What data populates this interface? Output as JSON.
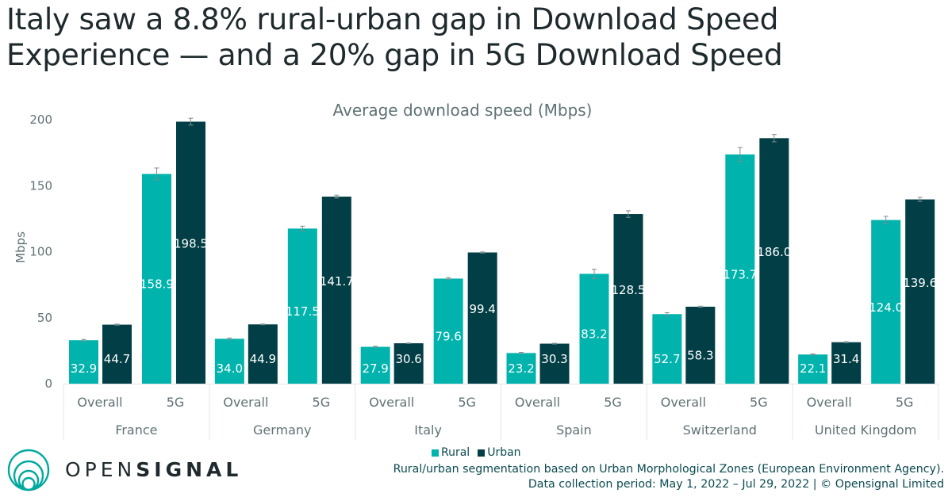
{
  "headline": {
    "line1": "Italy saw a 8.8% rural-urban gap in Download Speed",
    "line2": "Experience — and a 20% gap in 5G Download Speed"
  },
  "colors": {
    "rural": "#00b3ad",
    "urban": "#013e45",
    "axis_text": "#5f7275",
    "grid_line": "#e3e6e6",
    "error_bar": "#7f8c8d"
  },
  "chart_data": {
    "type": "bar",
    "title": "Average download speed (Mbps)",
    "xlabel": "",
    "ylabel": "Mbps",
    "ylim": [
      0,
      200
    ],
    "yticks": [
      0,
      50,
      100,
      150,
      200
    ],
    "grid": false,
    "legend_position": "bottom-center",
    "categories": [
      "France",
      "Germany",
      "Italy",
      "Spain",
      "Switzerland",
      "United Kingdom"
    ],
    "subcategories": [
      "Overall",
      "5G"
    ],
    "series": [
      {
        "name": "Rural",
        "values": {
          "Overall": [
            32.9,
            34.0,
            27.9,
            23.2,
            52.7,
            22.1
          ],
          "5G": [
            158.9,
            117.5,
            79.6,
            83.2,
            173.7,
            124.0
          ]
        },
        "error": {
          "Overall": [
            0.6,
            0.5,
            0.4,
            0.5,
            1.1,
            0.4
          ],
          "5G": [
            4.5,
            1.8,
            0.6,
            3.5,
            5.2,
            2.8
          ]
        }
      },
      {
        "name": "Urban",
        "values": {
          "Overall": [
            44.7,
            44.9,
            30.6,
            30.3,
            58.3,
            31.4
          ],
          "5G": [
            198.5,
            141.7,
            99.4,
            128.5,
            186.0,
            139.6
          ]
        },
        "error": {
          "Overall": [
            0.4,
            0.3,
            0.2,
            0.3,
            0.4,
            0.4
          ],
          "5G": [
            2.6,
            1.1,
            0.4,
            2.5,
            2.8,
            1.5
          ]
        }
      }
    ]
  },
  "legend": {
    "rural_label": "Rural",
    "urban_label": "Urban"
  },
  "footer": {
    "brand_light": "OPEN",
    "brand_bold": "SIGNAL",
    "note_line1": "Rural/urban segmentation based on Urban Morphological Zones (European Environment Agency).",
    "note_line2": "Data collection period: May 1, 2022 – Jul 29, 2022 | © Opensignal Limited"
  }
}
